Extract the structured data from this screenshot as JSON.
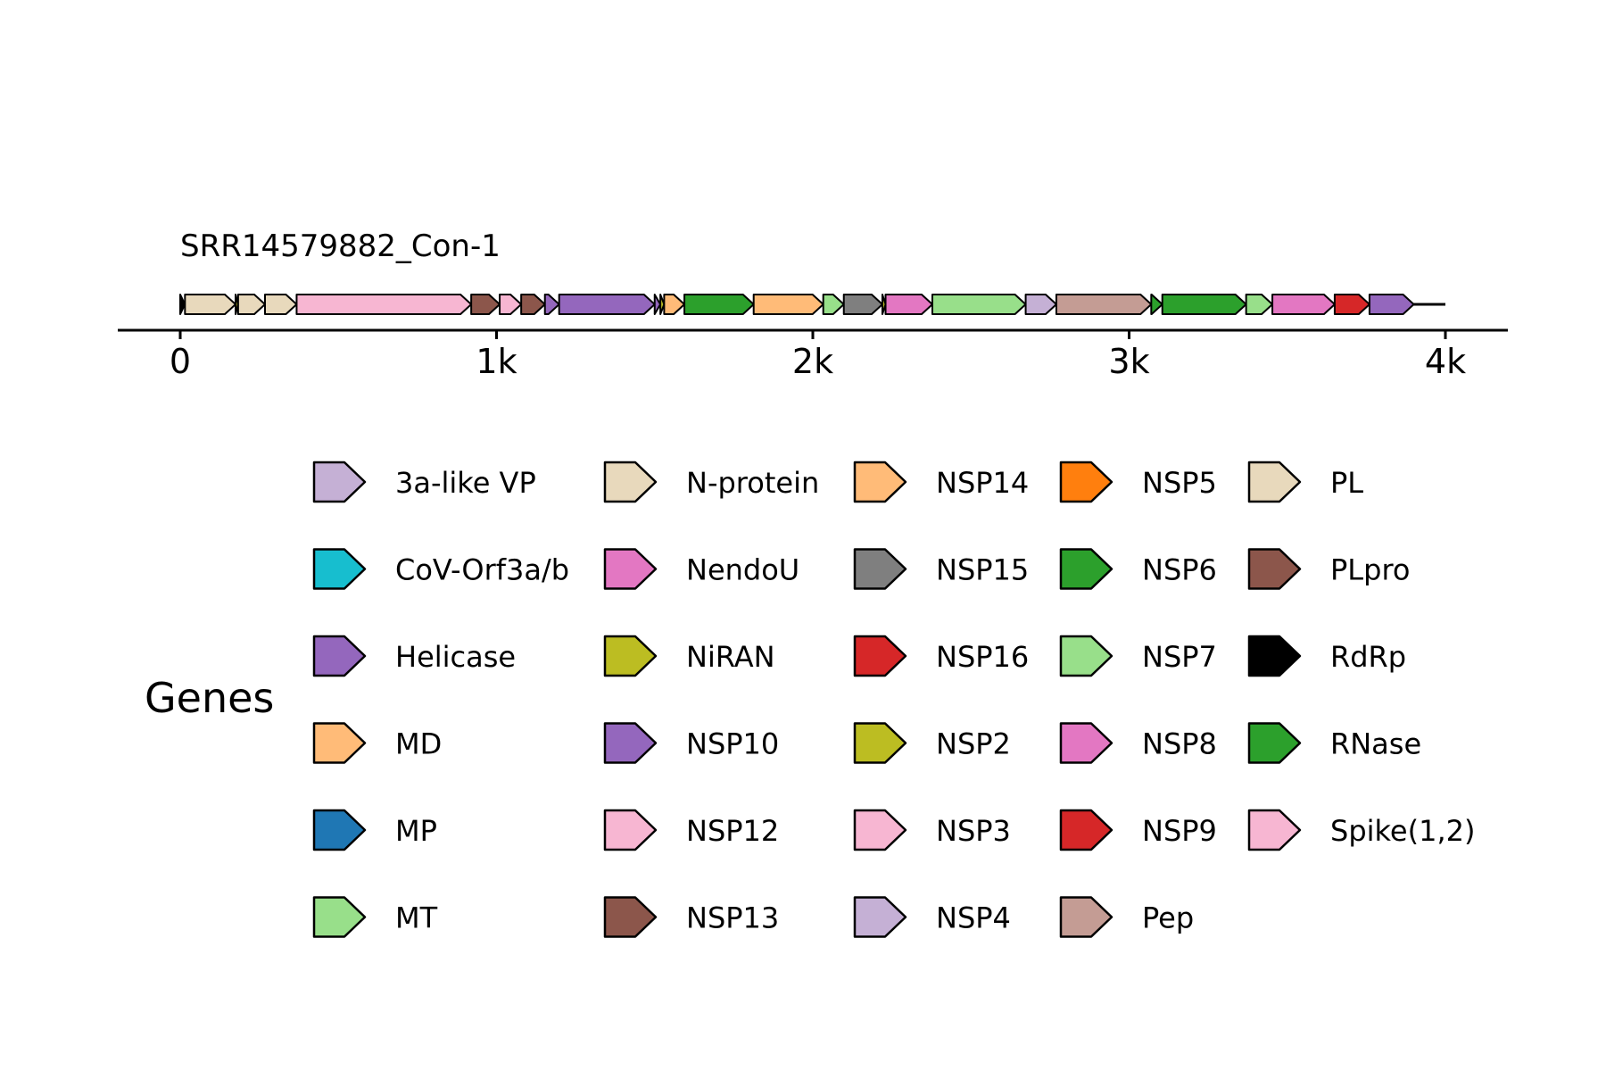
{
  "chart_data": {
    "type": "gene-map",
    "track_label": "SRR14579882_Con-1",
    "axis": {
      "range": [
        0,
        4000
      ],
      "ticks": [
        0,
        1000,
        2000,
        3000,
        4000
      ],
      "tick_labels": [
        "0",
        "1k",
        "2k",
        "3k",
        "4k"
      ]
    },
    "legend_title": "Genes",
    "genes": [
      {
        "gene": "RdRp",
        "start": 0,
        "end": 15
      },
      {
        "gene": "PL",
        "start": 15,
        "end": 175
      },
      {
        "gene": "NiRAN",
        "start": 175,
        "end": 183
      },
      {
        "gene": "N-protein",
        "start": 183,
        "end": 268
      },
      {
        "gene": "PL",
        "start": 268,
        "end": 368
      },
      {
        "gene": "Spike(1,2)",
        "start": 368,
        "end": 920
      },
      {
        "gene": "PLpro",
        "start": 920,
        "end": 1010
      },
      {
        "gene": "NSP3",
        "start": 1010,
        "end": 1078
      },
      {
        "gene": "NSP13",
        "start": 1078,
        "end": 1153
      },
      {
        "gene": "NSP10",
        "start": 1153,
        "end": 1198
      },
      {
        "gene": "Helicase",
        "start": 1198,
        "end": 1500
      },
      {
        "gene": "NSP10",
        "start": 1500,
        "end": 1518
      },
      {
        "gene": "NSP2",
        "start": 1518,
        "end": 1530
      },
      {
        "gene": "MD",
        "start": 1530,
        "end": 1594
      },
      {
        "gene": "NSP6",
        "start": 1594,
        "end": 1813
      },
      {
        "gene": "NSP14",
        "start": 1813,
        "end": 2033
      },
      {
        "gene": "NSP7",
        "start": 2033,
        "end": 2098
      },
      {
        "gene": "NSP15",
        "start": 2098,
        "end": 2220
      },
      {
        "gene": "NSP2",
        "start": 2220,
        "end": 2230
      },
      {
        "gene": "NSP8",
        "start": 2230,
        "end": 2378
      },
      {
        "gene": "MT",
        "start": 2378,
        "end": 2673
      },
      {
        "gene": "NSP4",
        "start": 2673,
        "end": 2770
      },
      {
        "gene": "Pep",
        "start": 2770,
        "end": 3070
      },
      {
        "gene": "RNase",
        "start": 3070,
        "end": 3105
      },
      {
        "gene": "NSP6",
        "start": 3105,
        "end": 3370
      },
      {
        "gene": "NSP7",
        "start": 3370,
        "end": 3453
      },
      {
        "gene": "NSP8",
        "start": 3453,
        "end": 3650
      },
      {
        "gene": "NSP9",
        "start": 3650,
        "end": 3760
      },
      {
        "gene": "NSP10",
        "start": 3760,
        "end": 3900
      }
    ],
    "legend": [
      {
        "label": "3a-like VP",
        "color": "#c5b0d5"
      },
      {
        "label": "CoV-Orf3a/b",
        "color": "#17becf"
      },
      {
        "label": "Helicase",
        "color": "#9467bd"
      },
      {
        "label": "MD",
        "color": "#ffbb78"
      },
      {
        "label": "MP",
        "color": "#1f77b4"
      },
      {
        "label": "MT",
        "color": "#98df8a"
      },
      {
        "label": "N-protein",
        "color": "#e8d9bc"
      },
      {
        "label": "NendoU",
        "color": "#e377c2"
      },
      {
        "label": "NiRAN",
        "color": "#bcbd22"
      },
      {
        "label": "NSP10",
        "color": "#9467bd"
      },
      {
        "label": "NSP12",
        "color": "#f7b6d2"
      },
      {
        "label": "NSP13",
        "color": "#8c564b"
      },
      {
        "label": "NSP14",
        "color": "#ffbb78"
      },
      {
        "label": "NSP15",
        "color": "#7f7f7f"
      },
      {
        "label": "NSP16",
        "color": "#d62728"
      },
      {
        "label": "NSP2",
        "color": "#bcbd22"
      },
      {
        "label": "NSP3",
        "color": "#f7b6d2"
      },
      {
        "label": "NSP4",
        "color": "#c5b0d5"
      },
      {
        "label": "NSP5",
        "color": "#ff7f0e"
      },
      {
        "label": "NSP6",
        "color": "#2ca02c"
      },
      {
        "label": "NSP7",
        "color": "#98df8a"
      },
      {
        "label": "NSP8",
        "color": "#e377c2"
      },
      {
        "label": "NSP9",
        "color": "#d62728"
      },
      {
        "label": "Pep",
        "color": "#c49c94"
      },
      {
        "label": "PL",
        "color": "#e8d9bc"
      },
      {
        "label": "PLpro",
        "color": "#8c564b"
      },
      {
        "label": "RdRp",
        "color": "#000000"
      },
      {
        "label": "RNase",
        "color": "#2ca02c"
      },
      {
        "label": "Spike(1,2)",
        "color": "#f7b6d2"
      }
    ]
  }
}
